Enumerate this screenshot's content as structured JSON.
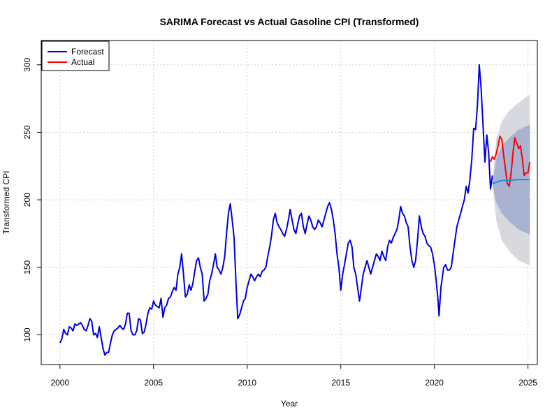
{
  "chart_data": {
    "type": "line",
    "title": "SARIMA Forecast vs Actual Gasoline CPI (Transformed)",
    "xlabel": "Year",
    "ylabel": "Transformed CPI",
    "xlim": [
      1999.0,
      2025.5
    ],
    "ylim": [
      78,
      318
    ],
    "x_ticks": [
      2000,
      2005,
      2010,
      2015,
      2020,
      2025
    ],
    "y_ticks": [
      100,
      150,
      200,
      250,
      300
    ],
    "grid": true,
    "legend_position": "top-left",
    "colors": {
      "history": "#0000dd",
      "actual": "#ff0000",
      "forecast_mean": "#1f8fdc",
      "band80": "#aab2d2",
      "band95": "#d8d8df"
    },
    "series": [
      {
        "name": "Forecast",
        "color": "#0000dd",
        "points": [
          [
            2000.0,
            94
          ],
          [
            2000.1,
            97
          ],
          [
            2000.2,
            104
          ],
          [
            2000.3,
            101
          ],
          [
            2000.4,
            100
          ],
          [
            2000.5,
            106
          ],
          [
            2000.6,
            105
          ],
          [
            2000.7,
            103
          ],
          [
            2000.8,
            108
          ],
          [
            2000.9,
            107
          ],
          [
            2001.0,
            108
          ],
          [
            2001.1,
            109
          ],
          [
            2001.2,
            107
          ],
          [
            2001.3,
            104
          ],
          [
            2001.4,
            103
          ],
          [
            2001.5,
            107
          ],
          [
            2001.6,
            112
          ],
          [
            2001.7,
            110
          ],
          [
            2001.8,
            100
          ],
          [
            2001.9,
            101
          ],
          [
            2002.0,
            98
          ],
          [
            2002.1,
            106
          ],
          [
            2002.2,
            98
          ],
          [
            2002.3,
            90
          ],
          [
            2002.4,
            85
          ],
          [
            2002.5,
            87
          ],
          [
            2002.6,
            87
          ],
          [
            2002.7,
            94
          ],
          [
            2002.8,
            100
          ],
          [
            2002.9,
            103
          ],
          [
            2003.0,
            104
          ],
          [
            2003.1,
            105
          ],
          [
            2003.2,
            107
          ],
          [
            2003.3,
            105
          ],
          [
            2003.4,
            104
          ],
          [
            2003.5,
            108
          ],
          [
            2003.6,
            116
          ],
          [
            2003.7,
            116
          ],
          [
            2003.8,
            103
          ],
          [
            2003.9,
            100
          ],
          [
            2004.0,
            100
          ],
          [
            2004.1,
            103
          ],
          [
            2004.2,
            112
          ],
          [
            2004.3,
            111
          ],
          [
            2004.4,
            101
          ],
          [
            2004.5,
            102
          ],
          [
            2004.6,
            108
          ],
          [
            2004.7,
            116
          ],
          [
            2004.8,
            120
          ],
          [
            2004.9,
            119
          ],
          [
            2005.0,
            125
          ],
          [
            2005.1,
            122
          ],
          [
            2005.2,
            121
          ],
          [
            2005.3,
            120
          ],
          [
            2005.4,
            127
          ],
          [
            2005.5,
            113
          ],
          [
            2005.6,
            120
          ],
          [
            2005.7,
            122
          ],
          [
            2005.8,
            127
          ],
          [
            2005.9,
            128
          ],
          [
            2006.0,
            132
          ],
          [
            2006.1,
            135
          ],
          [
            2006.2,
            133
          ],
          [
            2006.3,
            145
          ],
          [
            2006.4,
            150
          ],
          [
            2006.5,
            160
          ],
          [
            2006.6,
            145
          ],
          [
            2006.7,
            128
          ],
          [
            2006.8,
            130
          ],
          [
            2006.9,
            137
          ],
          [
            2007.0,
            133
          ],
          [
            2007.1,
            138
          ],
          [
            2007.2,
            147
          ],
          [
            2007.3,
            155
          ],
          [
            2007.4,
            157
          ],
          [
            2007.5,
            150
          ],
          [
            2007.6,
            145
          ],
          [
            2007.7,
            125
          ],
          [
            2007.8,
            127
          ],
          [
            2007.9,
            130
          ],
          [
            2008.0,
            140
          ],
          [
            2008.1,
            145
          ],
          [
            2008.2,
            152
          ],
          [
            2008.3,
            160
          ],
          [
            2008.4,
            150
          ],
          [
            2008.5,
            148
          ],
          [
            2008.6,
            145
          ],
          [
            2008.7,
            150
          ],
          [
            2008.8,
            158
          ],
          [
            2008.9,
            175
          ],
          [
            2009.0,
            190
          ],
          [
            2009.1,
            197
          ],
          [
            2009.2,
            185
          ],
          [
            2009.3,
            172
          ],
          [
            2009.4,
            140
          ],
          [
            2009.5,
            112
          ],
          [
            2009.6,
            115
          ],
          [
            2009.7,
            120
          ],
          [
            2009.8,
            125
          ],
          [
            2009.9,
            127
          ],
          [
            2010.0,
            135
          ],
          [
            2010.1,
            140
          ],
          [
            2010.2,
            145
          ],
          [
            2010.3,
            143
          ],
          [
            2010.4,
            140
          ],
          [
            2010.5,
            143
          ],
          [
            2010.6,
            145
          ],
          [
            2010.7,
            143
          ],
          [
            2010.8,
            147
          ],
          [
            2010.9,
            148
          ],
          [
            2011.0,
            150
          ],
          [
            2011.1,
            158
          ],
          [
            2011.2,
            165
          ],
          [
            2011.3,
            173
          ],
          [
            2011.4,
            185
          ],
          [
            2011.5,
            190
          ],
          [
            2011.6,
            183
          ],
          [
            2011.7,
            180
          ],
          [
            2011.8,
            178
          ],
          [
            2011.9,
            175
          ],
          [
            2012.0,
            173
          ],
          [
            2012.1,
            178
          ],
          [
            2012.2,
            185
          ],
          [
            2012.3,
            193
          ],
          [
            2012.4,
            185
          ],
          [
            2012.5,
            178
          ],
          [
            2012.6,
            175
          ],
          [
            2012.7,
            182
          ],
          [
            2012.8,
            188
          ],
          [
            2012.9,
            190
          ],
          [
            2013.0,
            180
          ],
          [
            2013.1,
            175
          ],
          [
            2013.2,
            182
          ],
          [
            2013.3,
            188
          ],
          [
            2013.4,
            185
          ],
          [
            2013.5,
            180
          ],
          [
            2013.6,
            178
          ],
          [
            2013.7,
            180
          ],
          [
            2013.8,
            185
          ],
          [
            2013.9,
            183
          ],
          [
            2014.0,
            180
          ],
          [
            2014.1,
            185
          ],
          [
            2014.2,
            190
          ],
          [
            2014.3,
            195
          ],
          [
            2014.4,
            198
          ],
          [
            2014.5,
            193
          ],
          [
            2014.6,
            185
          ],
          [
            2014.7,
            175
          ],
          [
            2014.8,
            160
          ],
          [
            2014.9,
            150
          ],
          [
            2015.0,
            133
          ],
          [
            2015.1,
            145
          ],
          [
            2015.2,
            152
          ],
          [
            2015.3,
            160
          ],
          [
            2015.4,
            168
          ],
          [
            2015.5,
            170
          ],
          [
            2015.6,
            165
          ],
          [
            2015.7,
            150
          ],
          [
            2015.8,
            145
          ],
          [
            2015.9,
            135
          ],
          [
            2016.0,
            125
          ],
          [
            2016.1,
            135
          ],
          [
            2016.2,
            145
          ],
          [
            2016.3,
            150
          ],
          [
            2016.4,
            155
          ],
          [
            2016.5,
            150
          ],
          [
            2016.6,
            145
          ],
          [
            2016.7,
            150
          ],
          [
            2016.8,
            155
          ],
          [
            2016.9,
            160
          ],
          [
            2017.0,
            158
          ],
          [
            2017.1,
            155
          ],
          [
            2017.2,
            162
          ],
          [
            2017.3,
            158
          ],
          [
            2017.4,
            155
          ],
          [
            2017.5,
            165
          ],
          [
            2017.6,
            170
          ],
          [
            2017.7,
            168
          ],
          [
            2017.8,
            172
          ],
          [
            2017.9,
            175
          ],
          [
            2018.0,
            178
          ],
          [
            2018.1,
            185
          ],
          [
            2018.2,
            195
          ],
          [
            2018.3,
            190
          ],
          [
            2018.4,
            188
          ],
          [
            2018.5,
            183
          ],
          [
            2018.6,
            180
          ],
          [
            2018.7,
            165
          ],
          [
            2018.8,
            155
          ],
          [
            2018.9,
            150
          ],
          [
            2019.0,
            155
          ],
          [
            2019.1,
            170
          ],
          [
            2019.2,
            188
          ],
          [
            2019.3,
            180
          ],
          [
            2019.4,
            175
          ],
          [
            2019.5,
            173
          ],
          [
            2019.6,
            168
          ],
          [
            2019.7,
            166
          ],
          [
            2019.8,
            165
          ],
          [
            2019.9,
            160
          ],
          [
            2020.0,
            152
          ],
          [
            2020.1,
            140
          ],
          [
            2020.2,
            125
          ],
          [
            2020.25,
            114
          ],
          [
            2020.35,
            135
          ],
          [
            2020.5,
            150
          ],
          [
            2020.6,
            152
          ],
          [
            2020.7,
            148
          ],
          [
            2020.8,
            148
          ],
          [
            2020.9,
            150
          ],
          [
            2021.0,
            160
          ],
          [
            2021.1,
            170
          ],
          [
            2021.2,
            180
          ],
          [
            2021.3,
            185
          ],
          [
            2021.4,
            190
          ],
          [
            2021.5,
            195
          ],
          [
            2021.6,
            200
          ],
          [
            2021.7,
            210
          ],
          [
            2021.8,
            205
          ],
          [
            2021.9,
            215
          ],
          [
            2022.0,
            230
          ],
          [
            2022.1,
            253
          ],
          [
            2022.2,
            252
          ],
          [
            2022.3,
            270
          ],
          [
            2022.4,
            300
          ],
          [
            2022.5,
            282
          ],
          [
            2022.6,
            255
          ],
          [
            2022.7,
            228
          ],
          [
            2022.8,
            248
          ],
          [
            2022.9,
            235
          ],
          [
            2023.0,
            208
          ],
          [
            2023.1,
            218
          ]
        ]
      },
      {
        "name": "Actual",
        "color": "#ff0000",
        "points": [
          [
            2023.0,
            228
          ],
          [
            2023.1,
            232
          ],
          [
            2023.2,
            230
          ],
          [
            2023.3,
            234
          ],
          [
            2023.4,
            240
          ],
          [
            2023.5,
            247
          ],
          [
            2023.6,
            245
          ],
          [
            2023.7,
            233
          ],
          [
            2023.8,
            222
          ],
          [
            2023.9,
            212
          ],
          [
            2024.0,
            210
          ],
          [
            2024.1,
            220
          ],
          [
            2024.2,
            235
          ],
          [
            2024.3,
            246
          ],
          [
            2024.4,
            242
          ],
          [
            2024.5,
            238
          ],
          [
            2024.6,
            240
          ],
          [
            2024.7,
            230
          ],
          [
            2024.8,
            218
          ],
          [
            2024.9,
            220
          ],
          [
            2025.0,
            220
          ],
          [
            2025.1,
            228
          ]
        ]
      },
      {
        "name": "",
        "color": "#1f8fdc",
        "points": [
          [
            2023.1,
            212
          ],
          [
            2023.3,
            213
          ],
          [
            2023.5,
            214
          ],
          [
            2023.8,
            214.5
          ],
          [
            2024.0,
            214.5
          ],
          [
            2024.5,
            215
          ],
          [
            2025.0,
            215
          ],
          [
            2025.1,
            215
          ]
        ]
      }
    ],
    "bands": [
      {
        "level": "95",
        "color": "#d8d8df",
        "x": [
          2023.1,
          2023.3,
          2023.6,
          2024.0,
          2024.5,
          2025.0,
          2025.1
        ],
        "lower": [
          212,
          185,
          170,
          162,
          155,
          152,
          151
        ],
        "upper": [
          212,
          245,
          258,
          266,
          272,
          277,
          278
        ]
      },
      {
        "level": "80",
        "color": "#aab2d2",
        "x": [
          2023.1,
          2023.3,
          2023.6,
          2024.0,
          2024.5,
          2025.0,
          2025.1
        ],
        "lower": [
          212,
          198,
          190,
          184,
          178,
          175,
          174
        ],
        "upper": [
          212,
          230,
          240,
          246,
          252,
          255,
          256
        ]
      }
    ]
  }
}
